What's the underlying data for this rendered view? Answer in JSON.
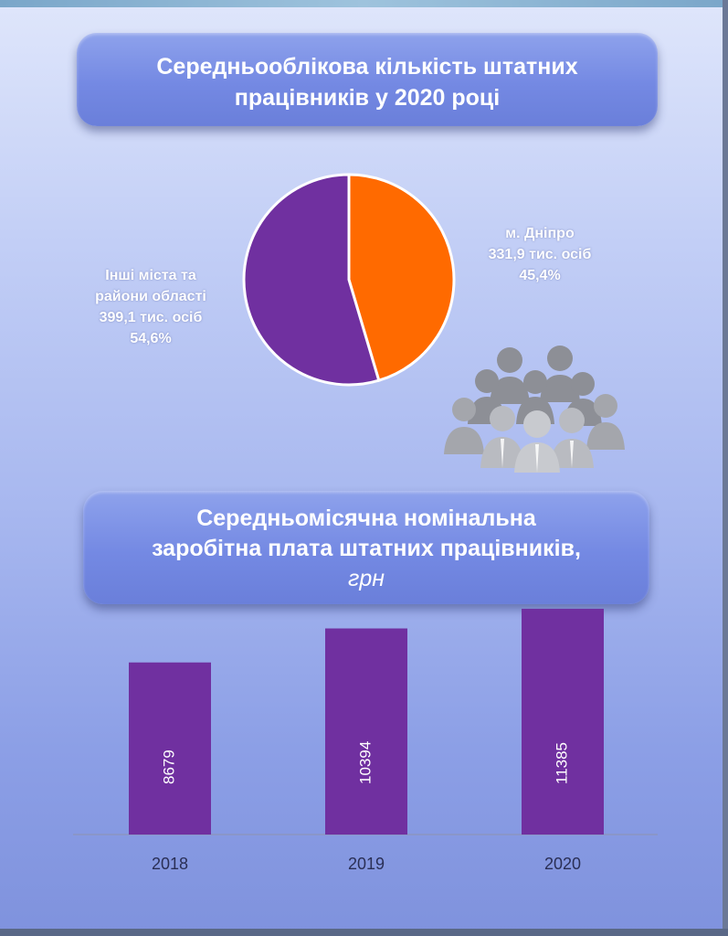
{
  "banner1": {
    "line1": "Середньооблікова кількість штатних",
    "line2": "працівників у 2020 році"
  },
  "banner2": {
    "line1": "Середньомісячна номінальна",
    "line2": "заробітна плата штатних працівників,",
    "unit": "грн"
  },
  "pie_labels": {
    "left": {
      "line1": "Інші міста та",
      "line2": "райони області",
      "line3": "399,1 тис.  осіб",
      "line4": "54,6%"
    },
    "right": {
      "line1": "м. Дніпро",
      "line2": "331,9 тис. осіб",
      "line3": "45,4%"
    }
  },
  "colors": {
    "orange": "#ff6a00",
    "purple": "#7030a0",
    "white": "#ffffff"
  },
  "icons": {
    "people": "people-group-icon"
  },
  "chart_data": [
    {
      "type": "pie",
      "title": "Середньооблікова кількість штатних працівників у 2020 році",
      "slices": [
        {
          "name": "м. Дніпро",
          "value": 331.9,
          "percent": 45.4,
          "color": "#ff6a00"
        },
        {
          "name": "Інші міста та райони області",
          "value": 399.1,
          "percent": 54.6,
          "color": "#7030a0"
        }
      ]
    },
    {
      "type": "bar",
      "title": "Середньомісячна номінальна заробітна плата штатних працівників, грн",
      "categories": [
        "2018",
        "2019",
        "2020"
      ],
      "values": [
        8679,
        10394,
        11385
      ],
      "data_labels": [
        "8679",
        "10394",
        "11385"
      ],
      "ylim": [
        0,
        13000
      ],
      "color": "#7030a0"
    }
  ]
}
